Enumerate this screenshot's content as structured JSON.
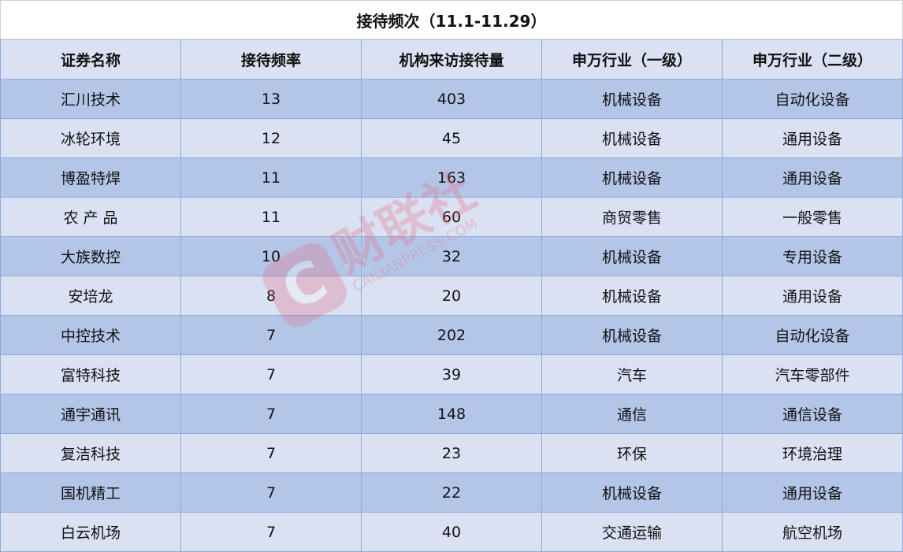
{
  "title": "接待频次（11.1-11.29）",
  "headers": [
    "证券名称",
    "接待频率",
    "机构来访接待量",
    "申万行业（一级）",
    "申万行业（二级）"
  ],
  "rows": [
    [
      "汇川技术",
      "13",
      "403",
      "机械设备",
      "自动化设备"
    ],
    [
      "冰轮环境",
      "12",
      "45",
      "机械设备",
      "通用设备"
    ],
    [
      "博盈特焊",
      "11",
      "163",
      "机械设备",
      "通用设备"
    ],
    [
      "农 产 品",
      "11",
      "60",
      "商贸零售",
      "一般零售"
    ],
    [
      "大族数控",
      "10",
      "32",
      "机械设备",
      "专用设备"
    ],
    [
      "安培龙",
      "8",
      "20",
      "机械设备",
      "通用设备"
    ],
    [
      "中控技术",
      "7",
      "202",
      "机械设备",
      "自动化设备"
    ],
    [
      "富特科技",
      "7",
      "39",
      "汽车",
      "汽车零部件"
    ],
    [
      "通宇通讯",
      "7",
      "148",
      "通信",
      "通信设备"
    ],
    [
      "复洁科技",
      "7",
      "23",
      "环保",
      "环境治理"
    ],
    [
      "国机精工",
      "7",
      "22",
      "机械设备",
      "通用设备"
    ],
    [
      "白云机场",
      "7",
      "40",
      "交通运输",
      "航空机场"
    ]
  ],
  "watermark": {
    "logo_text": "财联社",
    "url_text": "CAILIANPRESS.COM"
  },
  "colors": {
    "header_bg": "#d9e1f2",
    "row_dark": "#b4c6e7",
    "row_light": "#d9e1f2",
    "border": "#8eaadb",
    "watermark": "#e8677a"
  }
}
